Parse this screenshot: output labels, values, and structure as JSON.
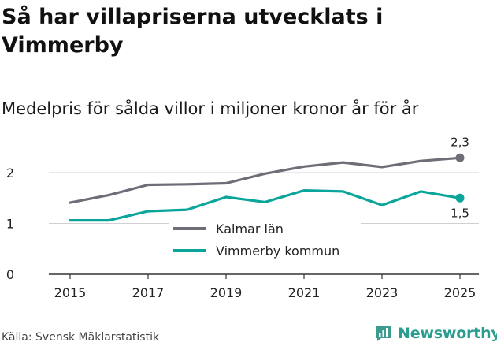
{
  "header": {
    "title": "Så har villapriserna utvecklats i Vimmerby",
    "subtitle": "Medelpris för sålda villor i miljoner kronor år för år"
  },
  "footer": {
    "source": "Källa: Svensk Mäklarstatistik",
    "brand": "Newsworthy"
  },
  "colors": {
    "kalmar": "#6e6e78",
    "vimmerby": "#0aa59a",
    "grid": "#d0d0d0",
    "axis": "#333333"
  },
  "chart_data": {
    "type": "line",
    "title": "Så har villapriserna utvecklats i Vimmerby",
    "subtitle": "Medelpris för sålda villor i miljoner kronor år för år",
    "xlabel": "",
    "ylabel": "",
    "x": [
      2015,
      2016,
      2017,
      2018,
      2019,
      2020,
      2021,
      2022,
      2023,
      2024,
      2025
    ],
    "xticks": [
      "2015",
      "2017",
      "2019",
      "2021",
      "2023",
      "2025"
    ],
    "yticks": [
      "0",
      "1",
      "2"
    ],
    "ylim": [
      0,
      2.45
    ],
    "grid": true,
    "legend_position": "center",
    "series": [
      {
        "name": "Kalmar län",
        "values": [
          1.41,
          1.56,
          1.76,
          1.77,
          1.79,
          1.98,
          2.12,
          2.2,
          2.11,
          2.23,
          2.29
        ],
        "end_label": "2,3"
      },
      {
        "name": "Vimmerby kommun",
        "values": [
          1.06,
          1.06,
          1.24,
          1.27,
          1.52,
          1.42,
          1.65,
          1.63,
          1.36,
          1.63,
          1.5
        ],
        "end_label": "1,5"
      }
    ]
  }
}
